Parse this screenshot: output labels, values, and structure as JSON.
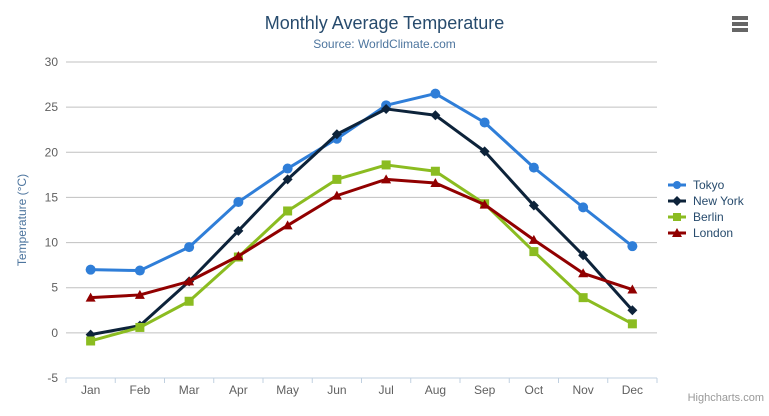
{
  "header": {
    "title": "Monthly Average Temperature",
    "subtitle": "Source: WorldClimate.com"
  },
  "chart_data": {
    "type": "line",
    "title": "Monthly Average Temperature",
    "subtitle": "Source: WorldClimate.com",
    "xlabel": "",
    "ylabel": "Temperature (°C)",
    "categories": [
      "Jan",
      "Feb",
      "Mar",
      "Apr",
      "May",
      "Jun",
      "Jul",
      "Aug",
      "Sep",
      "Oct",
      "Nov",
      "Dec"
    ],
    "ylim": [
      -5,
      30
    ],
    "yticks": [
      -5,
      0,
      5,
      10,
      15,
      20,
      25,
      30
    ],
    "grid": true,
    "legend_position": "right",
    "series": [
      {
        "name": "Tokyo",
        "color": "#2f7ed8",
        "marker": "circle",
        "values": [
          7.0,
          6.9,
          9.5,
          14.5,
          18.2,
          21.5,
          25.2,
          26.5,
          23.3,
          18.3,
          13.9,
          9.6
        ]
      },
      {
        "name": "New York",
        "color": "#0d233a",
        "marker": "diamond",
        "values": [
          -0.2,
          0.8,
          5.7,
          11.3,
          17.0,
          22.0,
          24.8,
          24.1,
          20.1,
          14.1,
          8.6,
          2.5
        ]
      },
      {
        "name": "Berlin",
        "color": "#8bbc21",
        "marker": "square",
        "values": [
          -0.9,
          0.6,
          3.5,
          8.4,
          13.5,
          17.0,
          18.6,
          17.9,
          14.3,
          9.0,
          3.9,
          1.0
        ]
      },
      {
        "name": "London",
        "color": "#910000",
        "marker": "triangle",
        "values": [
          3.9,
          4.2,
          5.7,
          8.5,
          11.9,
          15.2,
          17.0,
          16.6,
          14.2,
          10.3,
          6.6,
          4.8
        ]
      }
    ]
  },
  "styles": {
    "grid_color": "#c0c0c0",
    "axis_line_color": "#c0d0e0",
    "tick_label_color": "#606060",
    "title_color": "#274b6d",
    "subtitle_color": "#4d759e",
    "legend_text_color": "#274b6d"
  },
  "credits": {
    "text": "Highcharts.com"
  }
}
